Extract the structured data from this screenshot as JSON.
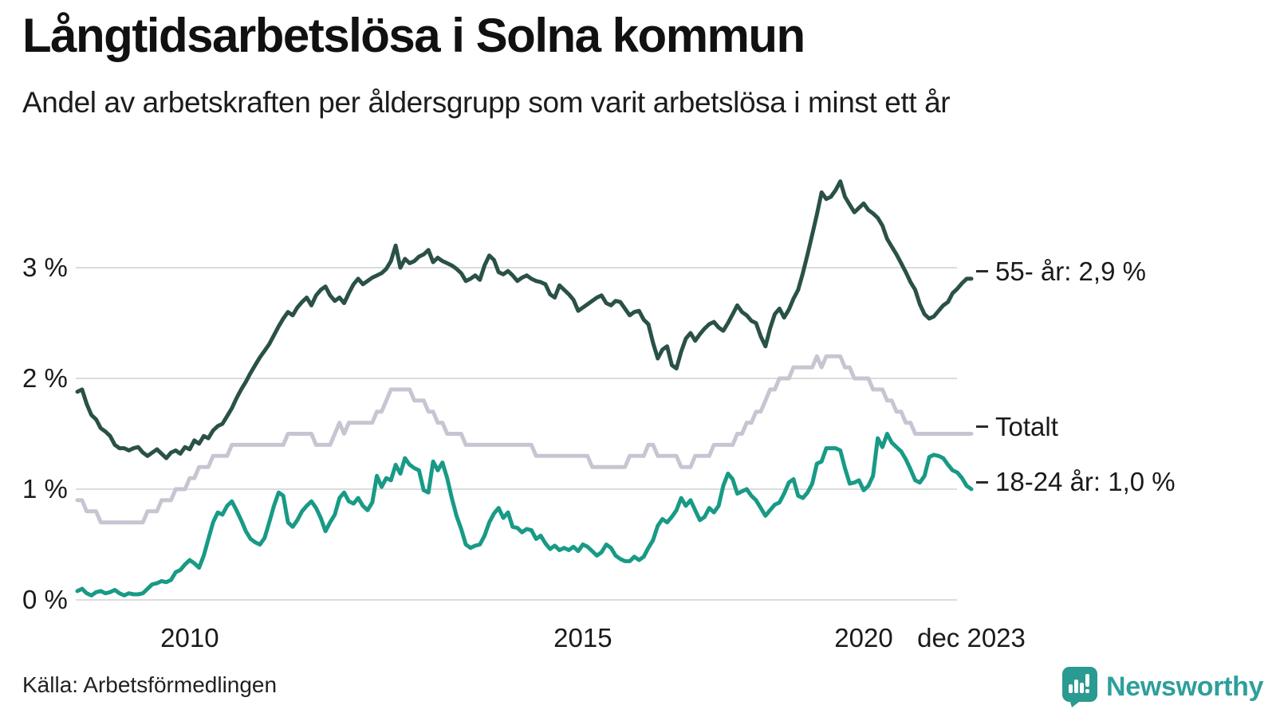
{
  "header": {
    "title": "Långtidsarbetslösa i Solna kommun",
    "subtitle": "Andel av arbetskraften per åldersgrupp som varit arbetslösa i minst ett år"
  },
  "footer": {
    "source": "Källa: Arbetsförmedlingen",
    "brand": "Newsworthy"
  },
  "colors": {
    "grid": "#dcdcdc",
    "text": "#1a1a1a",
    "brand_teal": "#2e9f9b"
  },
  "chart_data": {
    "type": "line",
    "frequency": "monthly",
    "period_start": "jan 2008",
    "period_end": "dec 2023",
    "n_points": 192,
    "grid": "horizontal",
    "ylim": [
      0,
      3.9
    ],
    "y_ticks": [
      {
        "label": "0 %",
        "value": 0
      },
      {
        "label": "1 %",
        "value": 1
      },
      {
        "label": "2 %",
        "value": 2
      },
      {
        "label": "3 %",
        "value": 3
      }
    ],
    "x_ticks": [
      {
        "label": "2010",
        "month_index": 24
      },
      {
        "label": "2015",
        "month_index": 108
      },
      {
        "label": "2020",
        "month_index": 168
      },
      {
        "label": "dec 2023",
        "month_index": 191
      }
    ],
    "series": [
      {
        "name": "55- år",
        "end_label": "55- år: 2,9 %",
        "last_value": 2.9,
        "color": "#2a5148",
        "values": [
          1.88,
          1.9,
          1.77,
          1.67,
          1.63,
          1.55,
          1.52,
          1.48,
          1.4,
          1.37,
          1.37,
          1.35,
          1.37,
          1.38,
          1.33,
          1.3,
          1.33,
          1.36,
          1.32,
          1.28,
          1.33,
          1.35,
          1.32,
          1.38,
          1.36,
          1.44,
          1.41,
          1.48,
          1.46,
          1.53,
          1.57,
          1.59,
          1.66,
          1.73,
          1.82,
          1.9,
          1.97,
          2.05,
          2.12,
          2.19,
          2.25,
          2.31,
          2.39,
          2.47,
          2.54,
          2.6,
          2.57,
          2.64,
          2.69,
          2.73,
          2.66,
          2.75,
          2.8,
          2.83,
          2.75,
          2.7,
          2.73,
          2.68,
          2.77,
          2.85,
          2.9,
          2.85,
          2.88,
          2.91,
          2.93,
          2.95,
          2.99,
          3.06,
          3.2,
          3.0,
          3.08,
          3.04,
          3.06,
          3.1,
          3.12,
          3.16,
          3.05,
          3.09,
          3.06,
          3.04,
          3.02,
          2.99,
          2.95,
          2.88,
          2.9,
          2.93,
          2.89,
          3.02,
          3.11,
          3.07,
          2.96,
          2.94,
          2.97,
          2.93,
          2.88,
          2.91,
          2.93,
          2.9,
          2.88,
          2.87,
          2.85,
          2.76,
          2.73,
          2.84,
          2.8,
          2.76,
          2.71,
          2.61,
          2.64,
          2.67,
          2.7,
          2.73,
          2.75,
          2.68,
          2.66,
          2.7,
          2.69,
          2.63,
          2.57,
          2.6,
          2.61,
          2.53,
          2.49,
          2.32,
          2.18,
          2.26,
          2.29,
          2.12,
          2.09,
          2.24,
          2.36,
          2.41,
          2.34,
          2.4,
          2.45,
          2.49,
          2.51,
          2.46,
          2.43,
          2.5,
          2.58,
          2.66,
          2.6,
          2.57,
          2.52,
          2.5,
          2.38,
          2.29,
          2.45,
          2.58,
          2.63,
          2.55,
          2.62,
          2.72,
          2.8,
          2.95,
          3.12,
          3.3,
          3.48,
          3.68,
          3.62,
          3.64,
          3.7,
          3.78,
          3.64,
          3.57,
          3.5,
          3.54,
          3.58,
          3.52,
          3.49,
          3.45,
          3.38,
          3.26,
          3.19,
          3.12,
          3.04,
          2.96,
          2.87,
          2.8,
          2.67,
          2.58,
          2.54,
          2.56,
          2.61,
          2.66,
          2.69,
          2.77,
          2.81,
          2.86,
          2.9,
          2.9
        ]
      },
      {
        "name": "Totalt",
        "end_label": "Totalt",
        "last_value": 1.5,
        "color": "#c8c5d2",
        "values": [
          0.9,
          0.9,
          0.8,
          0.8,
          0.8,
          0.7,
          0.7,
          0.7,
          0.7,
          0.7,
          0.7,
          0.7,
          0.7,
          0.7,
          0.7,
          0.8,
          0.8,
          0.8,
          0.9,
          0.9,
          0.9,
          1.0,
          1.0,
          1.0,
          1.1,
          1.1,
          1.2,
          1.2,
          1.2,
          1.3,
          1.3,
          1.3,
          1.3,
          1.4,
          1.4,
          1.4,
          1.4,
          1.4,
          1.4,
          1.4,
          1.4,
          1.4,
          1.4,
          1.4,
          1.4,
          1.5,
          1.5,
          1.5,
          1.5,
          1.5,
          1.5,
          1.4,
          1.4,
          1.4,
          1.4,
          1.5,
          1.6,
          1.5,
          1.6,
          1.6,
          1.6,
          1.6,
          1.6,
          1.6,
          1.7,
          1.7,
          1.8,
          1.9,
          1.9,
          1.9,
          1.9,
          1.9,
          1.8,
          1.8,
          1.8,
          1.7,
          1.7,
          1.6,
          1.6,
          1.5,
          1.5,
          1.5,
          1.5,
          1.4,
          1.4,
          1.4,
          1.4,
          1.4,
          1.4,
          1.4,
          1.4,
          1.4,
          1.4,
          1.4,
          1.4,
          1.4,
          1.4,
          1.4,
          1.3,
          1.3,
          1.3,
          1.3,
          1.3,
          1.3,
          1.3,
          1.3,
          1.3,
          1.3,
          1.3,
          1.3,
          1.2,
          1.2,
          1.2,
          1.2,
          1.2,
          1.2,
          1.2,
          1.2,
          1.3,
          1.3,
          1.3,
          1.3,
          1.4,
          1.4,
          1.3,
          1.3,
          1.3,
          1.3,
          1.3,
          1.2,
          1.2,
          1.2,
          1.3,
          1.3,
          1.3,
          1.3,
          1.4,
          1.4,
          1.4,
          1.4,
          1.4,
          1.5,
          1.5,
          1.6,
          1.6,
          1.7,
          1.7,
          1.8,
          1.9,
          1.9,
          2.0,
          2.0,
          2.0,
          2.1,
          2.1,
          2.1,
          2.1,
          2.1,
          2.2,
          2.1,
          2.2,
          2.2,
          2.2,
          2.2,
          2.1,
          2.1,
          2.0,
          2.0,
          2.0,
          2.0,
          1.9,
          1.9,
          1.9,
          1.8,
          1.8,
          1.7,
          1.7,
          1.6,
          1.6,
          1.5,
          1.5,
          1.5,
          1.5,
          1.5,
          1.5,
          1.5,
          1.5,
          1.5,
          1.5,
          1.5,
          1.5,
          1.5
        ]
      },
      {
        "name": "18-24 år",
        "end_label": "18-24 år: 1,0 %",
        "last_value": 1.0,
        "color": "#189a86",
        "values": [
          0.08,
          0.1,
          0.06,
          0.04,
          0.07,
          0.08,
          0.06,
          0.07,
          0.09,
          0.06,
          0.04,
          0.06,
          0.05,
          0.05,
          0.06,
          0.1,
          0.14,
          0.15,
          0.17,
          0.16,
          0.18,
          0.25,
          0.27,
          0.32,
          0.36,
          0.33,
          0.29,
          0.4,
          0.55,
          0.7,
          0.79,
          0.77,
          0.85,
          0.89,
          0.81,
          0.72,
          0.62,
          0.55,
          0.52,
          0.5,
          0.56,
          0.7,
          0.85,
          0.97,
          0.94,
          0.7,
          0.66,
          0.72,
          0.8,
          0.85,
          0.89,
          0.83,
          0.74,
          0.62,
          0.7,
          0.77,
          0.92,
          0.97,
          0.89,
          0.87,
          0.92,
          0.85,
          0.81,
          0.88,
          1.12,
          1.02,
          1.1,
          1.08,
          1.22,
          1.14,
          1.28,
          1.22,
          1.19,
          1.17,
          0.99,
          0.97,
          1.25,
          1.17,
          1.24,
          1.1,
          0.92,
          0.76,
          0.64,
          0.5,
          0.47,
          0.49,
          0.5,
          0.58,
          0.7,
          0.78,
          0.83,
          0.74,
          0.79,
          0.66,
          0.65,
          0.61,
          0.64,
          0.63,
          0.55,
          0.58,
          0.51,
          0.46,
          0.49,
          0.45,
          0.47,
          0.45,
          0.48,
          0.44,
          0.5,
          0.48,
          0.44,
          0.4,
          0.43,
          0.5,
          0.47,
          0.4,
          0.37,
          0.35,
          0.35,
          0.39,
          0.36,
          0.39,
          0.47,
          0.54,
          0.67,
          0.73,
          0.7,
          0.75,
          0.81,
          0.92,
          0.85,
          0.9,
          0.81,
          0.72,
          0.75,
          0.83,
          0.79,
          0.85,
          1.03,
          1.14,
          1.09,
          0.96,
          0.98,
          1.0,
          0.94,
          0.9,
          0.83,
          0.76,
          0.81,
          0.86,
          0.88,
          0.96,
          1.06,
          1.09,
          0.94,
          0.92,
          0.97,
          1.05,
          1.23,
          1.25,
          1.37,
          1.37,
          1.37,
          1.35,
          1.19,
          1.05,
          1.06,
          1.08,
          0.99,
          1.03,
          1.12,
          1.46,
          1.38,
          1.5,
          1.42,
          1.38,
          1.34,
          1.27,
          1.18,
          1.08,
          1.06,
          1.12,
          1.29,
          1.31,
          1.3,
          1.28,
          1.22,
          1.17,
          1.15,
          1.1,
          1.03,
          1.0
        ]
      }
    ]
  }
}
